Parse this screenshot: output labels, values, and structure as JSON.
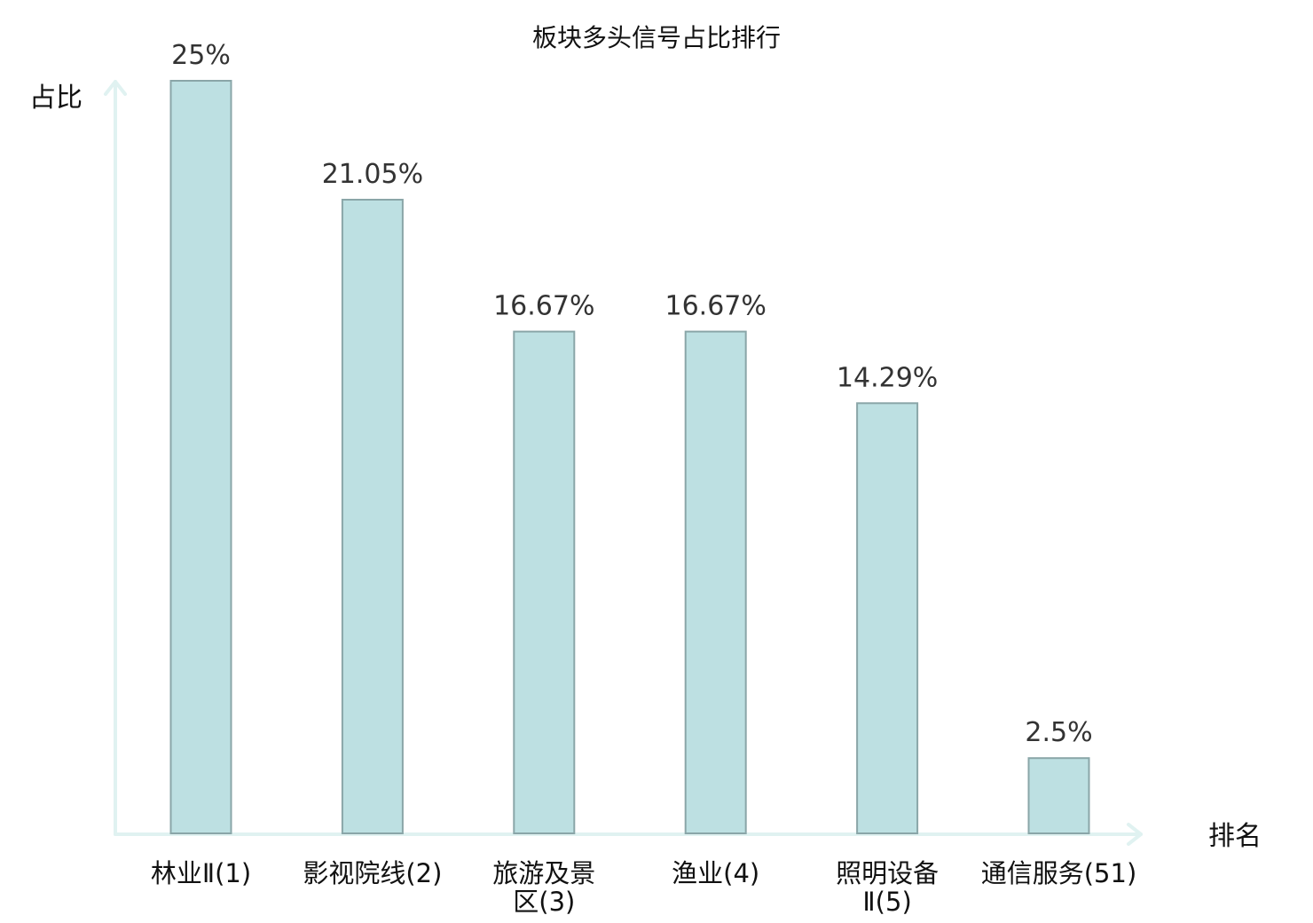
{
  "chart_data": {
    "type": "bar",
    "title": "板块多头信号占比排行",
    "xlabel": "排名",
    "ylabel": "占比",
    "ylim": [
      0,
      25
    ],
    "grid": false,
    "legend": "none",
    "categories": [
      "林业Ⅱ(1)",
      "影视院线(2)",
      "旅游及景区(3)",
      "渔业(4)",
      "照明设备Ⅱ(5)",
      "通信服务(51)"
    ],
    "category_lines": [
      [
        "林业Ⅱ(1)"
      ],
      [
        "影视院线(2)"
      ],
      [
        "旅游及景",
        "区(3)"
      ],
      [
        "渔业(4)"
      ],
      [
        "照明设备",
        "Ⅱ(5)"
      ],
      [
        "通信服务(51)"
      ]
    ],
    "values": [
      25,
      21.05,
      16.67,
      16.67,
      14.29,
      2.5
    ],
    "value_labels": [
      "25%",
      "21.05%",
      "16.67%",
      "16.67%",
      "14.29%",
      "2.5%"
    ],
    "highlight_index": 5,
    "colors": {
      "bar_fill": "#bde0e2",
      "bar_stroke": "#8aa6a8",
      "axis": "#e0f2f1",
      "highlight_text": "#e02020",
      "text": "#111111",
      "value_text": "#333333"
    }
  }
}
